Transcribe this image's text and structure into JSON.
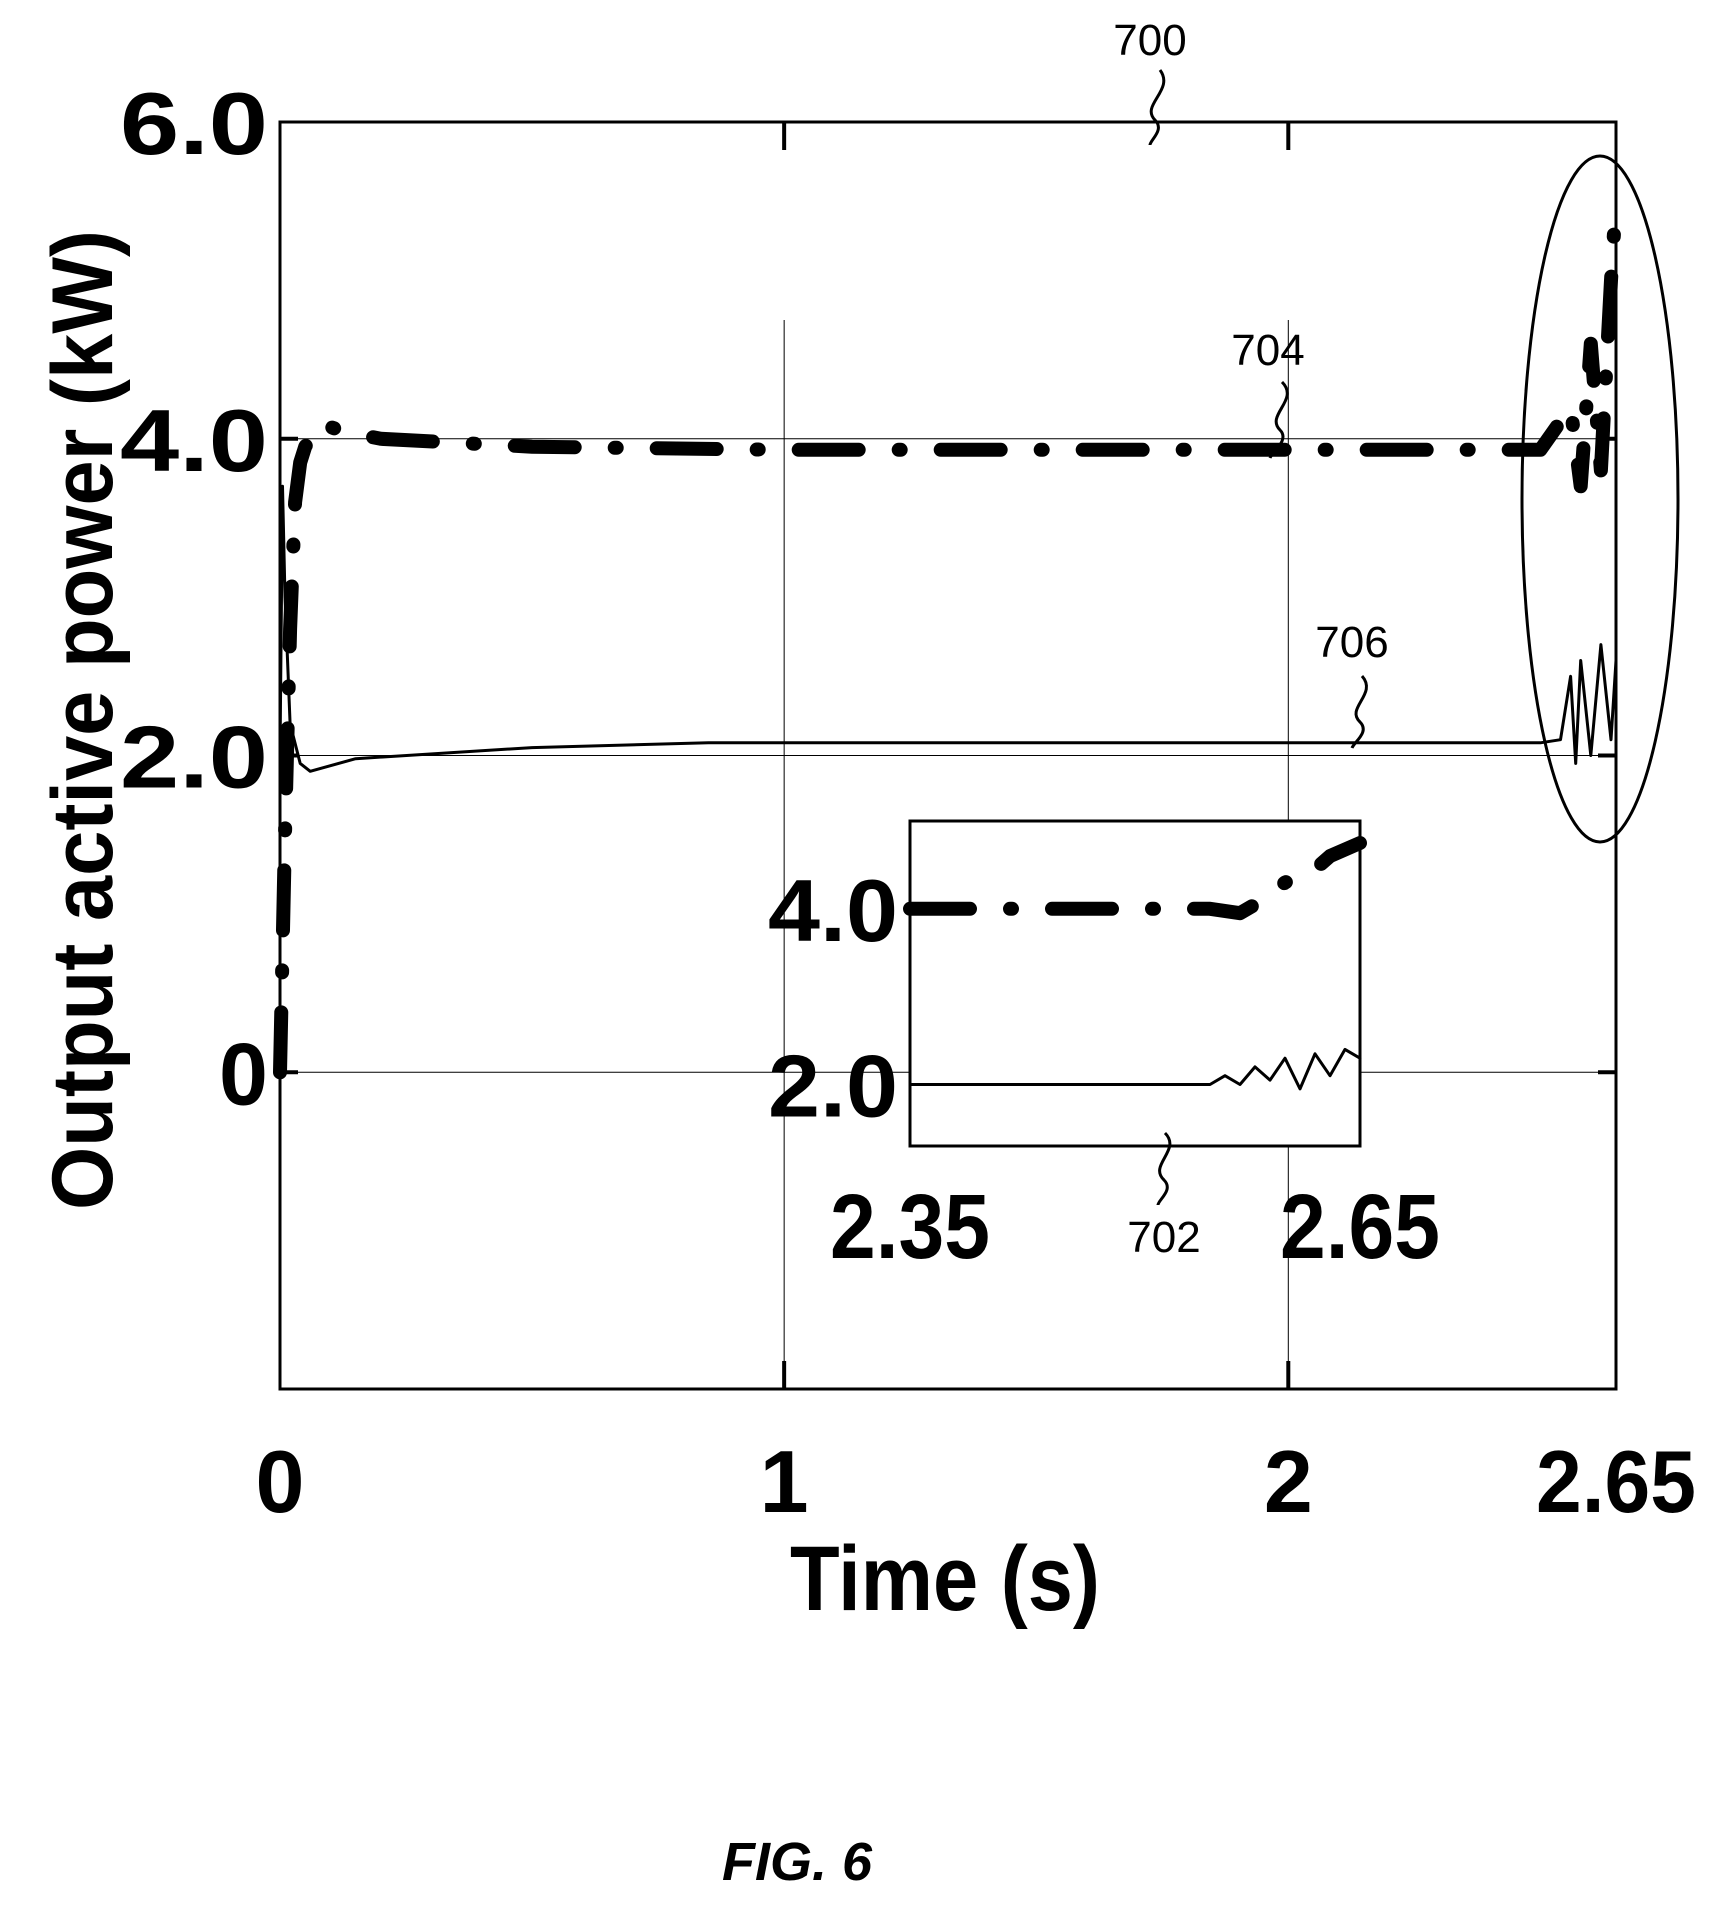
{
  "caption": "FIG. 6",
  "chart_data": {
    "type": "line",
    "title": "",
    "xlabel": "Time (s)",
    "ylabel": "Output active power (kW)",
    "xlim": [
      0,
      2.65
    ],
    "ylim": [
      -2.0,
      6.0
    ],
    "x_ticks": [
      {
        "value": 0,
        "label": "0"
      },
      {
        "value": 1,
        "label": "1"
      },
      {
        "value": 2,
        "label": "2"
      },
      {
        "value": 2.65,
        "label": "2.65"
      }
    ],
    "y_ticks": [
      {
        "value": 0,
        "label": "0"
      },
      {
        "value": 2.0,
        "label": "2.0"
      },
      {
        "value": 4.0,
        "label": "4.0"
      },
      {
        "value": 6.0,
        "label": "6.0"
      }
    ],
    "grid": true,
    "series": [
      {
        "ref": "704",
        "style": "dash-dot",
        "x": [
          0,
          0.01,
          0.02,
          0.03,
          0.04,
          0.05,
          0.08,
          0.12,
          0.2,
          0.5,
          1.0,
          1.5,
          2.0,
          2.3,
          2.5,
          2.56,
          2.58,
          2.6,
          2.62,
          2.64,
          2.65
        ],
        "y": [
          0.0,
          1.5,
          2.8,
          3.6,
          3.85,
          3.95,
          4.1,
          4.05,
          4.0,
          3.95,
          3.93,
          3.93,
          3.93,
          3.93,
          3.93,
          4.2,
          3.7,
          4.6,
          3.8,
          5.0,
          5.5
        ]
      },
      {
        "ref": "706",
        "style": "solid",
        "x": [
          0,
          0.005,
          0.01,
          0.02,
          0.04,
          0.06,
          0.15,
          0.5,
          0.85,
          1.5,
          2.0,
          2.5,
          2.54,
          2.56,
          2.57,
          2.58,
          2.6,
          2.62,
          2.64,
          2.65
        ],
        "y": [
          2.0,
          3.7,
          3.0,
          2.2,
          1.95,
          1.9,
          1.98,
          2.05,
          2.08,
          2.08,
          2.08,
          2.08,
          2.1,
          2.5,
          1.95,
          2.6,
          2.0,
          2.7,
          2.1,
          2.6
        ]
      }
    ],
    "inset": {
      "ref": "702",
      "xlim": [
        2.35,
        2.65
      ],
      "x_ticks": [
        {
          "value": 2.35,
          "label": "2.35"
        },
        {
          "value": 2.65,
          "label": "2.65"
        }
      ],
      "y_ticks": [
        {
          "value": 2.0,
          "label": "2.0"
        },
        {
          "value": 4.0,
          "label": "4.0"
        }
      ],
      "series": [
        {
          "ref": "704",
          "style": "dash-dot",
          "x": [
            2.35,
            2.55,
            2.57,
            2.59,
            2.6,
            2.62,
            2.63,
            2.65
          ],
          "y": [
            4.0,
            4.0,
            3.95,
            4.15,
            4.3,
            4.45,
            4.6,
            4.75
          ]
        },
        {
          "ref": "706",
          "style": "solid",
          "x": [
            2.35,
            2.55,
            2.56,
            2.57,
            2.58,
            2.59,
            2.6,
            2.61,
            2.62,
            2.63,
            2.64,
            2.65
          ],
          "y": [
            2.0,
            2.0,
            2.1,
            2.0,
            2.2,
            2.05,
            2.3,
            1.95,
            2.35,
            2.1,
            2.4,
            2.3
          ]
        }
      ]
    },
    "annotations": [
      {
        "ref": "700",
        "label": "700"
      },
      {
        "ref": "702",
        "label": "702"
      },
      {
        "ref": "704",
        "label": "704"
      },
      {
        "ref": "706",
        "label": "706"
      }
    ]
  }
}
